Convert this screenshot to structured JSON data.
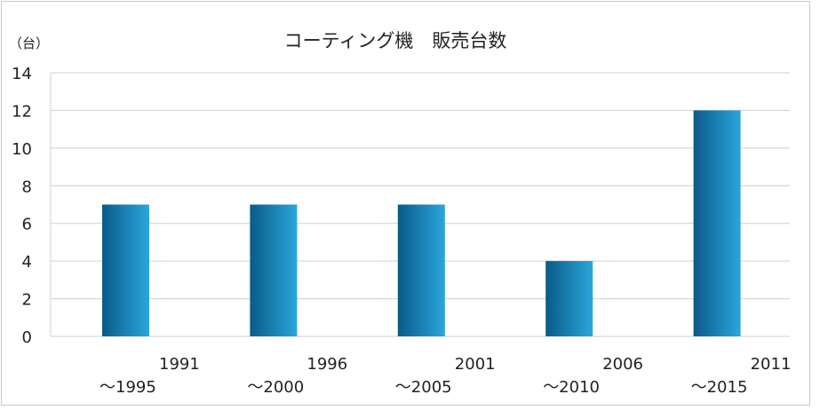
{
  "chart_data": {
    "type": "bar",
    "title": "コーティング機　販売台数",
    "ylabel": "（台）",
    "xlabel": "",
    "ylim": [
      0,
      14
    ],
    "yticks": [
      0,
      2,
      4,
      6,
      8,
      10,
      12,
      14
    ],
    "grid": true,
    "categories": [
      [
        "1991",
        "～1995"
      ],
      [
        "1996",
        "～2000"
      ],
      [
        "2001",
        "～2005"
      ],
      [
        "2006",
        "～2010"
      ],
      [
        "2011",
        "～2015"
      ]
    ],
    "values": [
      7,
      7,
      7,
      4,
      12
    ],
    "colors": {
      "bar_dark": "#0a5a88",
      "bar_light": "#2aa6dc",
      "grid": "#cfcfcf"
    }
  }
}
